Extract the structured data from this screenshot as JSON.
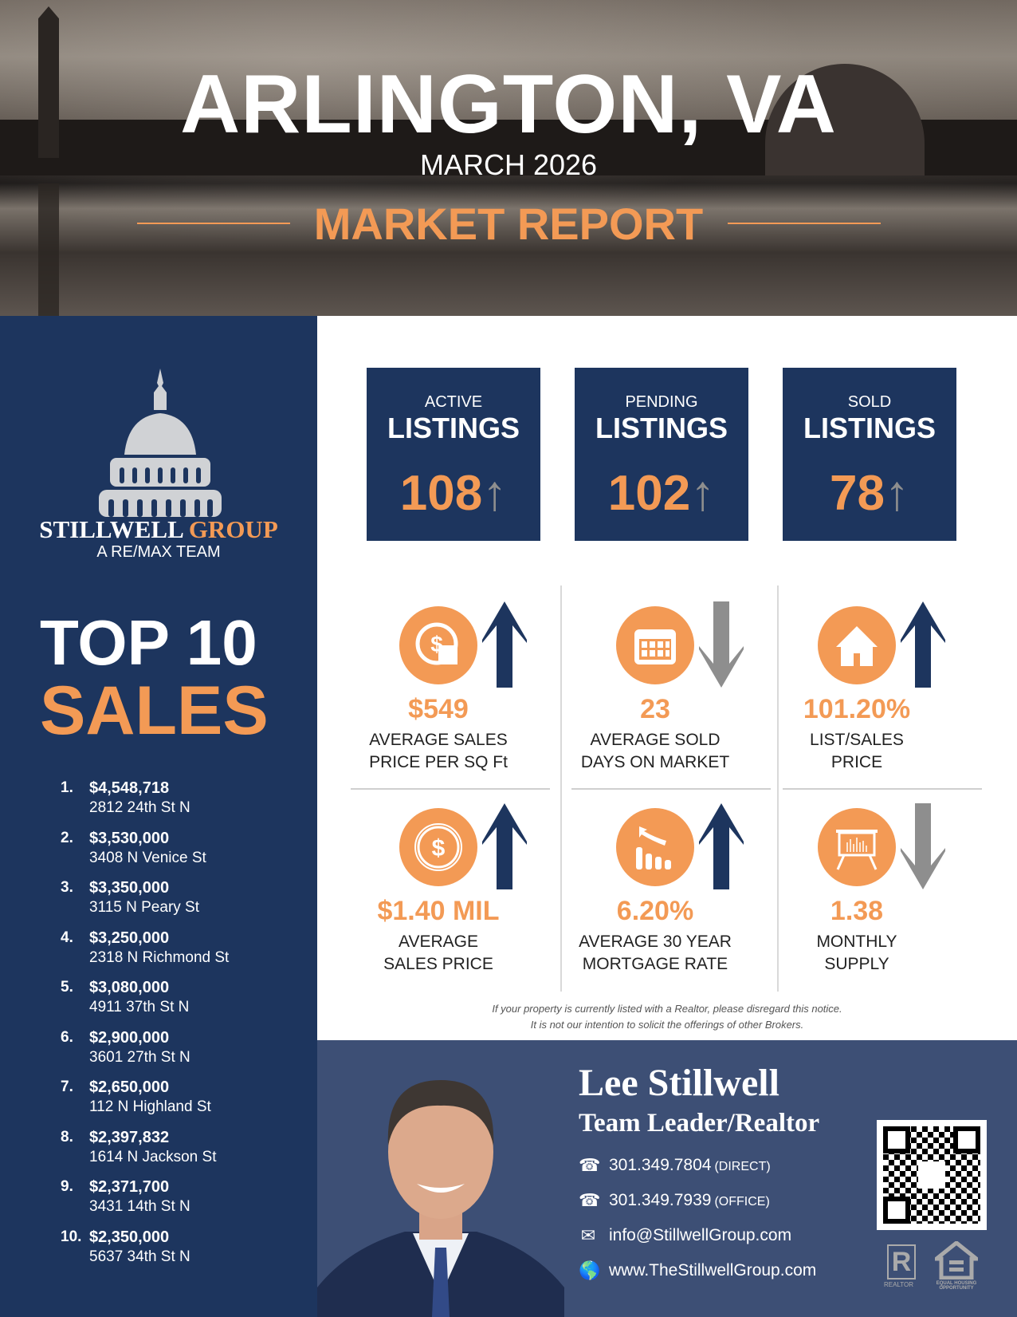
{
  "header": {
    "city": "ARLINGTON, VA",
    "date": "MARCH 2026",
    "report": "MARKET REPORT"
  },
  "brand": {
    "name_main": "STILLWELL",
    "name_accent": "GROUP",
    "tagline": "A RE/MAX TEAM"
  },
  "top_sales": {
    "title_line1": "TOP 10",
    "title_line2": "SALES",
    "items": [
      {
        "rank": "1.",
        "price": "$4,548,718",
        "address": "2812 24th St N"
      },
      {
        "rank": "2.",
        "price": "$3,530,000",
        "address": "3408 N Venice St"
      },
      {
        "rank": "3.",
        "price": "$3,350,000",
        "address": "3115 N Peary St"
      },
      {
        "rank": "4.",
        "price": "$3,250,000",
        "address": "2318 N Richmond St"
      },
      {
        "rank": "5.",
        "price": "$3,080,000",
        "address": "4911 37th St N"
      },
      {
        "rank": "6.",
        "price": "$2,900,000",
        "address": "3601 27th St N"
      },
      {
        "rank": "7.",
        "price": "$2,650,000",
        "address": "112 N Highland St"
      },
      {
        "rank": "8.",
        "price": "$2,397,832",
        "address": "1614 N Jackson St"
      },
      {
        "rank": "9.",
        "price": "$2,371,700",
        "address": "3431 14th St N"
      },
      {
        "rank": "10.",
        "price": "$2,350,000",
        "address": "5637 34th St N"
      }
    ]
  },
  "listings": [
    {
      "kind": "ACTIVE",
      "title": "LISTINGS",
      "count": "108",
      "trend": "up"
    },
    {
      "kind": "PENDING",
      "title": "LISTINGS",
      "count": "102",
      "trend": "up"
    },
    {
      "kind": "SOLD",
      "title": "LISTINGS",
      "count": "78",
      "trend": "up"
    }
  ],
  "stats": [
    {
      "icon": "price-per-sqft-icon",
      "value": "$549",
      "label1": "AVERAGE SALES",
      "label2": "PRICE PER SQ Ft",
      "trend": "up"
    },
    {
      "icon": "calendar-icon",
      "value": "23",
      "label1": "AVERAGE SOLD",
      "label2": "DAYS ON MARKET",
      "trend": "down"
    },
    {
      "icon": "house-icon",
      "value": "101.20%",
      "label1": "LIST/SALES",
      "label2": "PRICE",
      "trend": "up"
    },
    {
      "icon": "dollar-coin-icon",
      "value": "$1.40 MIL",
      "label1": "AVERAGE",
      "label2": "SALES PRICE",
      "trend": "up"
    },
    {
      "icon": "chart-trend-icon",
      "value": "6.20%",
      "label1": "AVERAGE 30 YEAR",
      "label2": "MORTGAGE RATE",
      "trend": "up"
    },
    {
      "icon": "presentation-board-icon",
      "value": "1.38",
      "label1": "MONTHLY",
      "label2": "SUPPLY",
      "trend": "down"
    }
  ],
  "disclaimer": {
    "line1": "If your property is currently listed with a Realtor, please disregard this notice.",
    "line2": "It is not our intention to solicit the offerings of other Brokers."
  },
  "agent": {
    "name": "Lee Stillwell",
    "title": "Team Leader/Realtor",
    "contacts": [
      {
        "icon": "phone-icon",
        "text": "301.349.7804",
        "note": "(DIRECT)"
      },
      {
        "icon": "phone-icon",
        "text": "301.349.7939",
        "note": "(OFFICE)"
      },
      {
        "icon": "mail-icon",
        "text": "info@StillwellGroup.com",
        "note": ""
      },
      {
        "icon": "globe-icon",
        "text": "www.TheStillwellGroup.com",
        "note": ""
      }
    ]
  },
  "badges": {
    "realtor": "REALTOR",
    "equal_housing": "EQUAL HOUSING OPPORTUNITY"
  },
  "colors": {
    "navy": "#1d355e",
    "orange": "#f39a55",
    "gray_arrow": "#8e8e8e",
    "slate": "#3d4f75"
  }
}
